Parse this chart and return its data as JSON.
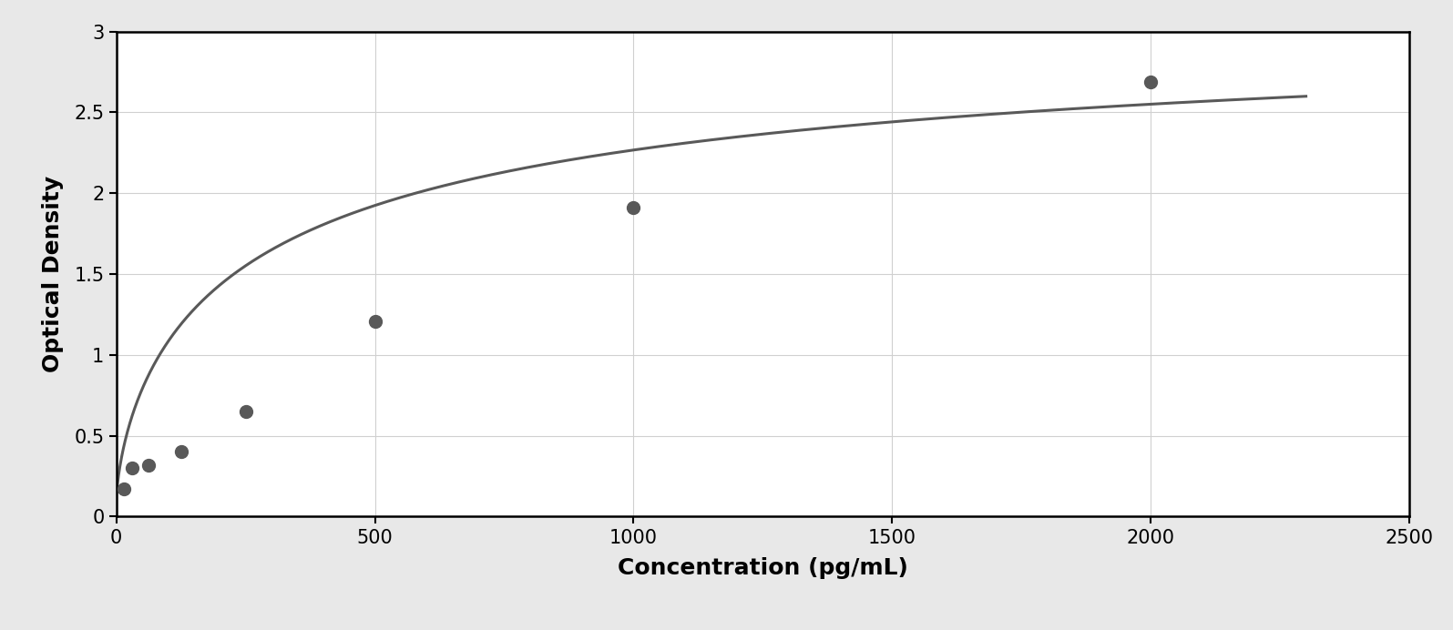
{
  "x_data": [
    15.625,
    31.25,
    62.5,
    125,
    250,
    500,
    1000,
    2000
  ],
  "y_data": [
    0.17,
    0.3,
    0.32,
    0.4,
    0.65,
    1.21,
    1.91,
    2.69
  ],
  "curve_color": "#595959",
  "point_color": "#595959",
  "point_size": 100,
  "line_width": 2.2,
  "xlabel": "Concentration (pg/mL)",
  "ylabel": "Optical Density",
  "xlim": [
    0,
    2500
  ],
  "ylim": [
    0,
    3
  ],
  "xticks": [
    0,
    500,
    1000,
    1500,
    2000,
    2500
  ],
  "yticks": [
    0,
    0.5,
    1.0,
    1.5,
    2.0,
    2.5,
    3.0
  ],
  "xlabel_fontsize": 18,
  "ylabel_fontsize": 18,
  "tick_fontsize": 15,
  "grid_color": "#d0d0d0",
  "background_color": "#ffffff",
  "border_color": "#000000",
  "figure_facecolor": "#f0f0f0",
  "figure_border": true
}
